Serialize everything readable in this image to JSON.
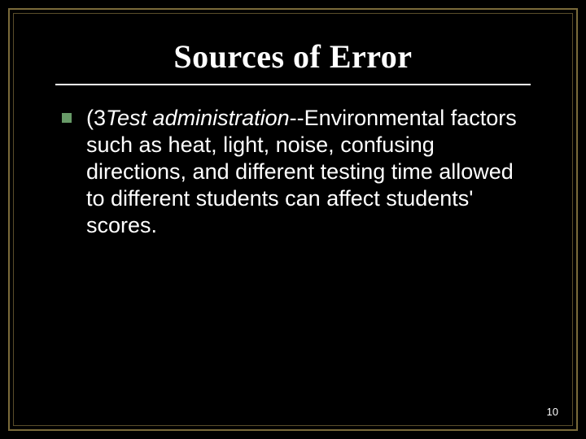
{
  "slide": {
    "background_color": "#000000",
    "border_outer_color": "#7a6a3a",
    "border_inner_color": "#5a4d2a",
    "title": {
      "text": "Sources of Error",
      "font_family": "Times New Roman",
      "font_size_pt": 40,
      "font_weight": "bold",
      "color": "#ffffff",
      "rule_color": "#ffffff"
    },
    "bullet": {
      "marker_color": "#679a67",
      "lead_prefix": "(3",
      "lead_italic": "Test administration",
      "continuation": "--Environmental factors such as heat, light, noise, confusing directions, and different testing time allowed to different students can affect students' scores.",
      "text_color": "#ffffff",
      "font_size_pt": 27,
      "line_height": 1.22
    },
    "page_number": "10"
  }
}
